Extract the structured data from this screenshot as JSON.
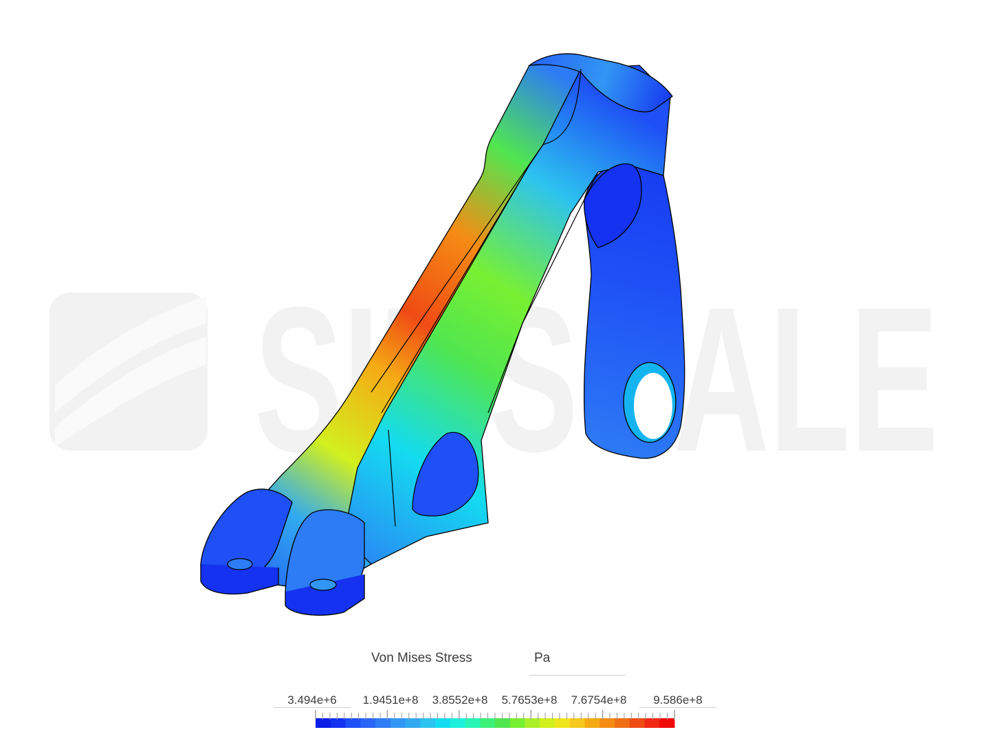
{
  "legend": {
    "title": "Von Mises Stress",
    "unit": "Pa",
    "ticks": [
      "3.494e+6",
      "1.9451e+8",
      "3.8552e+8",
      "5.7653e+8",
      "7.6754e+8",
      "9.586e+8"
    ],
    "min": 3494000,
    "max": 958600000,
    "colors": [
      "#0a1ee6",
      "#1432f0",
      "#1e50f5",
      "#2864f5",
      "#2d7cf5",
      "#3296f5",
      "#32aaf0",
      "#2dc3f0",
      "#14dcf0",
      "#1ef0dc",
      "#28f5b4",
      "#3cf078",
      "#50e650",
      "#78f032",
      "#aaf028",
      "#d2f01e",
      "#f0e61e",
      "#f5c81e",
      "#f5aa14",
      "#f58c14",
      "#f06e14",
      "#f04b14",
      "#f02814",
      "#f00a0a"
    ]
  },
  "watermark": {
    "text": "SIMSCALE"
  },
  "colors": {
    "mesh_edge": "#000000",
    "watermark": "#f2f2f2"
  }
}
